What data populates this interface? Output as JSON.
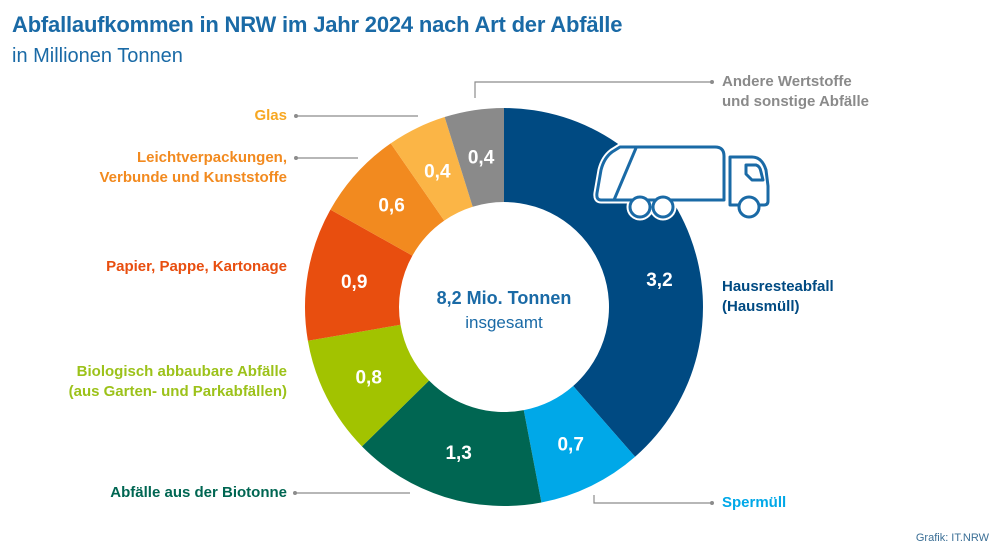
{
  "chart_data": {
    "type": "pie",
    "variant": "donut",
    "title": "Abfallaufkommen in NRW im Jahr 2024 nach Art der Abfälle",
    "subtitle": "in Millionen Tonnen",
    "unit": "Mio. Tonnen",
    "center_label": {
      "main": "8,2 Mio. Tonnen",
      "sub": "insgesamt"
    },
    "total": 8.2,
    "slices": [
      {
        "key": "hausmuell",
        "label": "Hausresteabfall (Hausmüll)",
        "label_lines": [
          "Hausresteabfall",
          "(Hausmüll)"
        ],
        "value": 3.2,
        "value_label": "3,2",
        "color": "#004a82",
        "label_color": "#004a82"
      },
      {
        "key": "sperrmuell",
        "label": "Spermüll",
        "label_lines": [
          "Spermüll"
        ],
        "value": 0.7,
        "value_label": "0,7",
        "color": "#00a8e8",
        "label_color": "#00a8e8"
      },
      {
        "key": "biotonne",
        "label": "Abfälle aus der Biotonne",
        "label_lines": [
          "Abfälle aus der Biotonne"
        ],
        "value": 1.3,
        "value_label": "1,3",
        "color": "#006652",
        "label_color": "#006652"
      },
      {
        "key": "garten",
        "label": "Biologisch abbaubare Abfälle (aus Garten- und Parkabfällen)",
        "label_lines": [
          "Biologisch abbaubare Abfälle",
          "(aus Garten- und Parkabfällen)"
        ],
        "value": 0.8,
        "value_label": "0,8",
        "color": "#a2c300",
        "label_color": "#9cc21a"
      },
      {
        "key": "papier",
        "label": "Papier, Pappe, Kartonage",
        "label_lines": [
          "Papier, Pappe, Kartonage"
        ],
        "value": 0.9,
        "value_label": "0,9",
        "color": "#e84e0f",
        "label_color": "#e84e0f"
      },
      {
        "key": "lvp",
        "label": "Leichtverpackungen, Verbunde und Kunststoffe",
        "label_lines": [
          "Leichtverpackungen,",
          "Verbunde und Kunststoffe"
        ],
        "value": 0.6,
        "value_label": "0,6",
        "color": "#f28a1f",
        "label_color": "#f28a1f"
      },
      {
        "key": "glas",
        "label": "Glas",
        "label_lines": [
          "Glas"
        ],
        "value": 0.4,
        "value_label": "0,4",
        "color": "#fbb546",
        "label_color": "#f7a823"
      },
      {
        "key": "andere",
        "label": "Andere Wertstoffe und sonstige Abfälle",
        "label_lines": [
          "Andere Wertstoffe",
          "und sonstige Abfälle"
        ],
        "value": 0.4,
        "value_label": "0,4",
        "color": "#8a8a8a",
        "label_color": "#8a8a8a"
      }
    ],
    "start_angle": "top",
    "direction": "clockwise",
    "icon": "garbage-truck-icon",
    "source": "Grafik: IT.NRW"
  },
  "colors": {
    "title": "#1a6aa6",
    "leader_line": "#8c8c8c",
    "truck_stroke": "#1a6aa6"
  }
}
